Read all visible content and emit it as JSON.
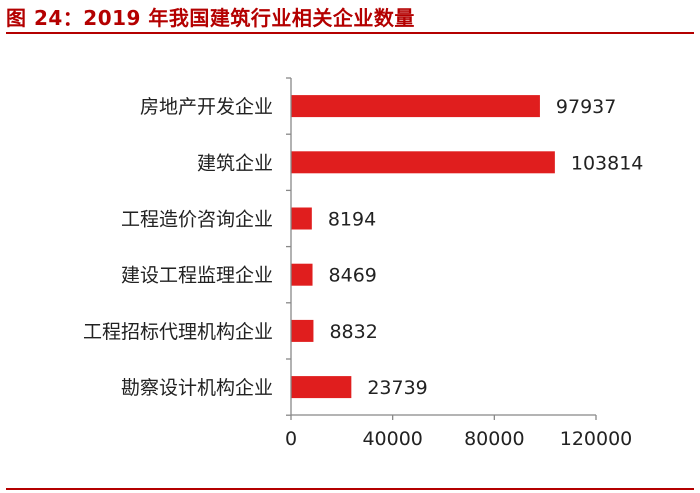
{
  "figure": {
    "title": "图 24：2019 年我国建筑行业相关企业数量"
  },
  "colors": {
    "accent": "#b40000",
    "bar": "#e01e1e",
    "axis": "#888888",
    "text": "#222222"
  },
  "chart_data": {
    "type": "bar",
    "orientation": "horizontal",
    "categories": [
      "房地产开发企业",
      "建筑企业",
      "工程造价咨询企业",
      "建设工程监理企业",
      "工程招标代理机构企业",
      "勘察设计机构企业"
    ],
    "values": [
      97937,
      103814,
      8194,
      8469,
      8832,
      23739
    ],
    "value_labels": [
      "97937",
      "103814",
      "8194",
      "8469",
      "8832",
      "23739"
    ],
    "xlim": [
      0,
      120000
    ],
    "xticks": [
      0,
      40000,
      80000,
      120000
    ],
    "xtick_labels": [
      "0",
      "40000",
      "80000",
      "120000"
    ],
    "xlabel": "",
    "ylabel": "",
    "grid": false,
    "legend": "none"
  }
}
